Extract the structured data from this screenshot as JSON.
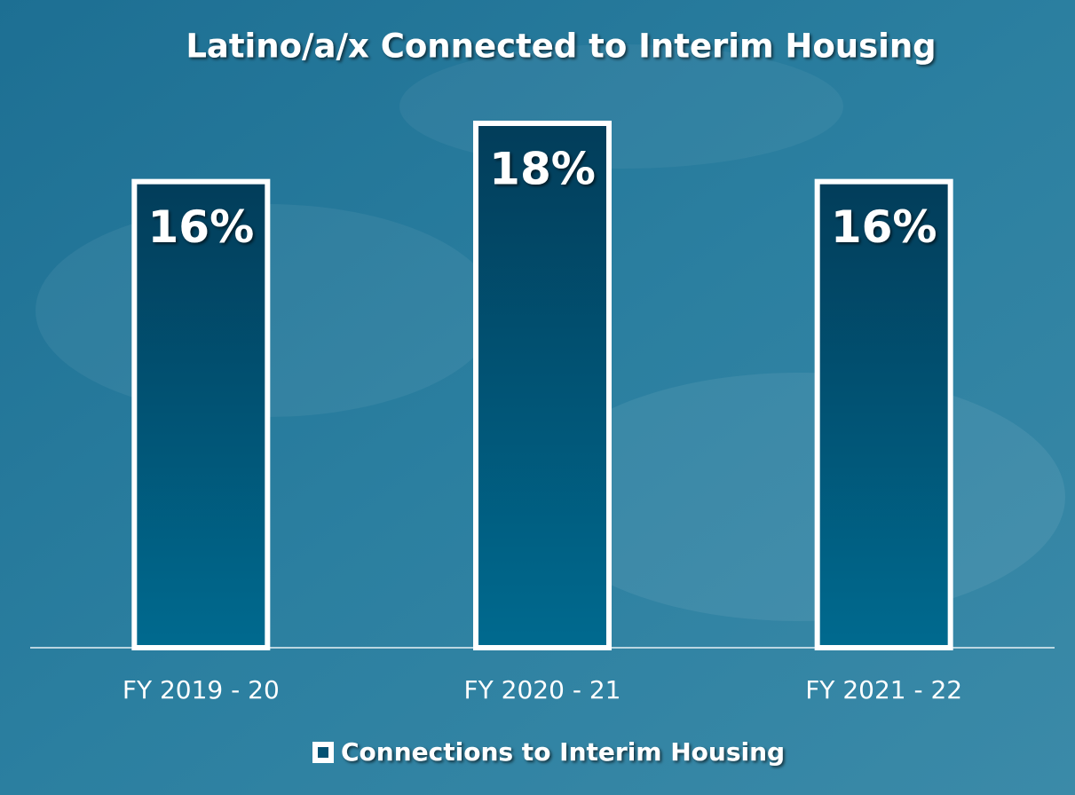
{
  "chart_data": {
    "type": "bar",
    "title": "Latino/a/x Connected to Interim Housing",
    "categories": [
      "FY 2019 - 20",
      "FY 2020 - 21",
      "FY 2021 - 22"
    ],
    "series": [
      {
        "name": "Connections to Interim Housing",
        "color": "#035173",
        "values": [
          16,
          18,
          16
        ],
        "value_labels": [
          "16%",
          "18%",
          "16%"
        ]
      }
    ]
  }
}
